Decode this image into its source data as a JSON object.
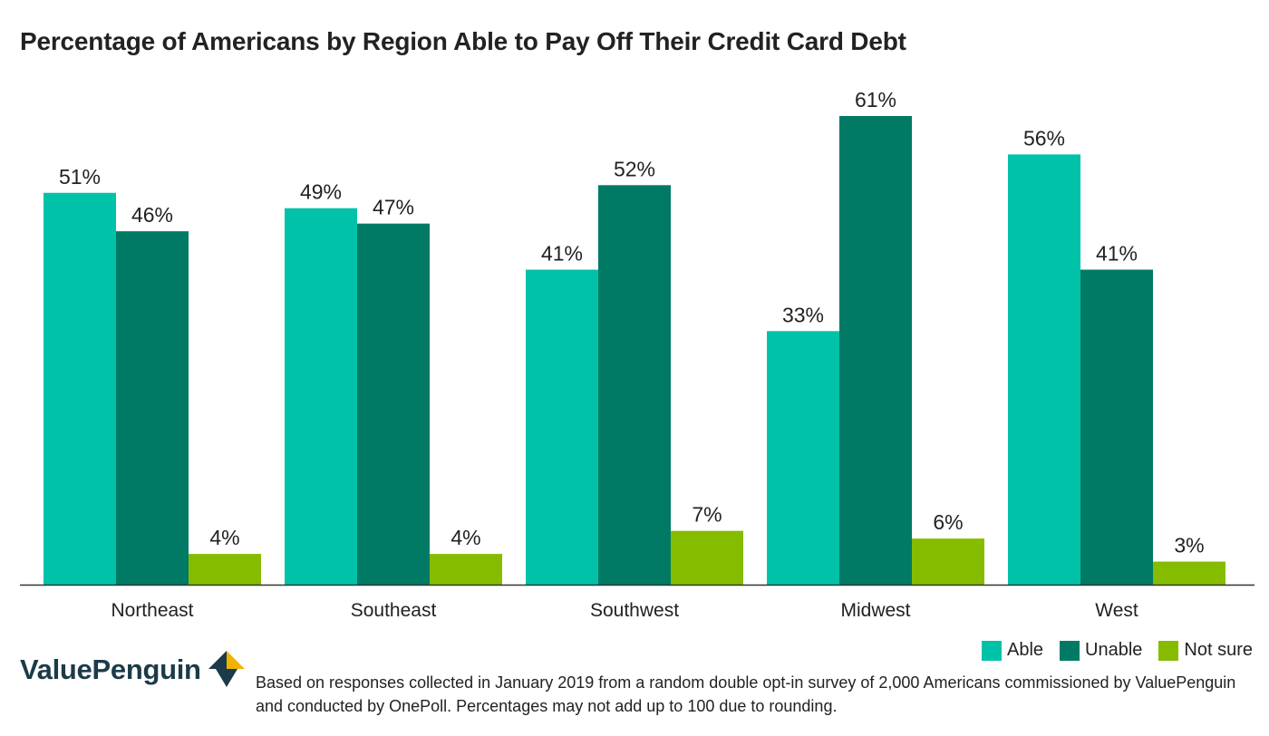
{
  "title": "Percentage of Americans by Region Able to Pay Off Their Credit Card Debt",
  "colors": {
    "able": "#00c2a8",
    "unable": "#007a65",
    "not_sure": "#86bc00",
    "axis": "#333333",
    "text": "#222222",
    "brand_dark": "#1c3b49",
    "brand_gold": "#f2b300"
  },
  "legend": {
    "able": "Able",
    "unable": "Unable",
    "not_sure": "Not sure"
  },
  "logo": {
    "text": "ValuePenguin",
    "icon": "valuepenguin-logo-icon"
  },
  "footnote": "Based on responses collected in January 2019 from a random double opt-in survey of 2,000 Americans commissioned by ValuePenguin and conducted by OnePoll. Percentages may not add up to 100 due to rounding.",
  "chart_data": {
    "type": "bar",
    "categories": [
      "Northeast",
      "Southeast",
      "Southwest",
      "Midwest",
      "West"
    ],
    "series": [
      {
        "name": "Able",
        "values": [
          51,
          49,
          41,
          33,
          56
        ],
        "labels": [
          "51%",
          "49%",
          "41%",
          "33%",
          "56%"
        ]
      },
      {
        "name": "Unable",
        "values": [
          46,
          47,
          52,
          61,
          41
        ],
        "labels": [
          "46%",
          "47%",
          "52%",
          "61%",
          "41%"
        ]
      },
      {
        "name": "Not sure",
        "values": [
          4,
          4,
          7,
          6,
          3
        ],
        "labels": [
          "4%",
          "4%",
          "7%",
          "6%",
          "3%"
        ]
      }
    ],
    "ylim": [
      0,
      61
    ],
    "grid": false,
    "legend_position": "bottom-right"
  }
}
